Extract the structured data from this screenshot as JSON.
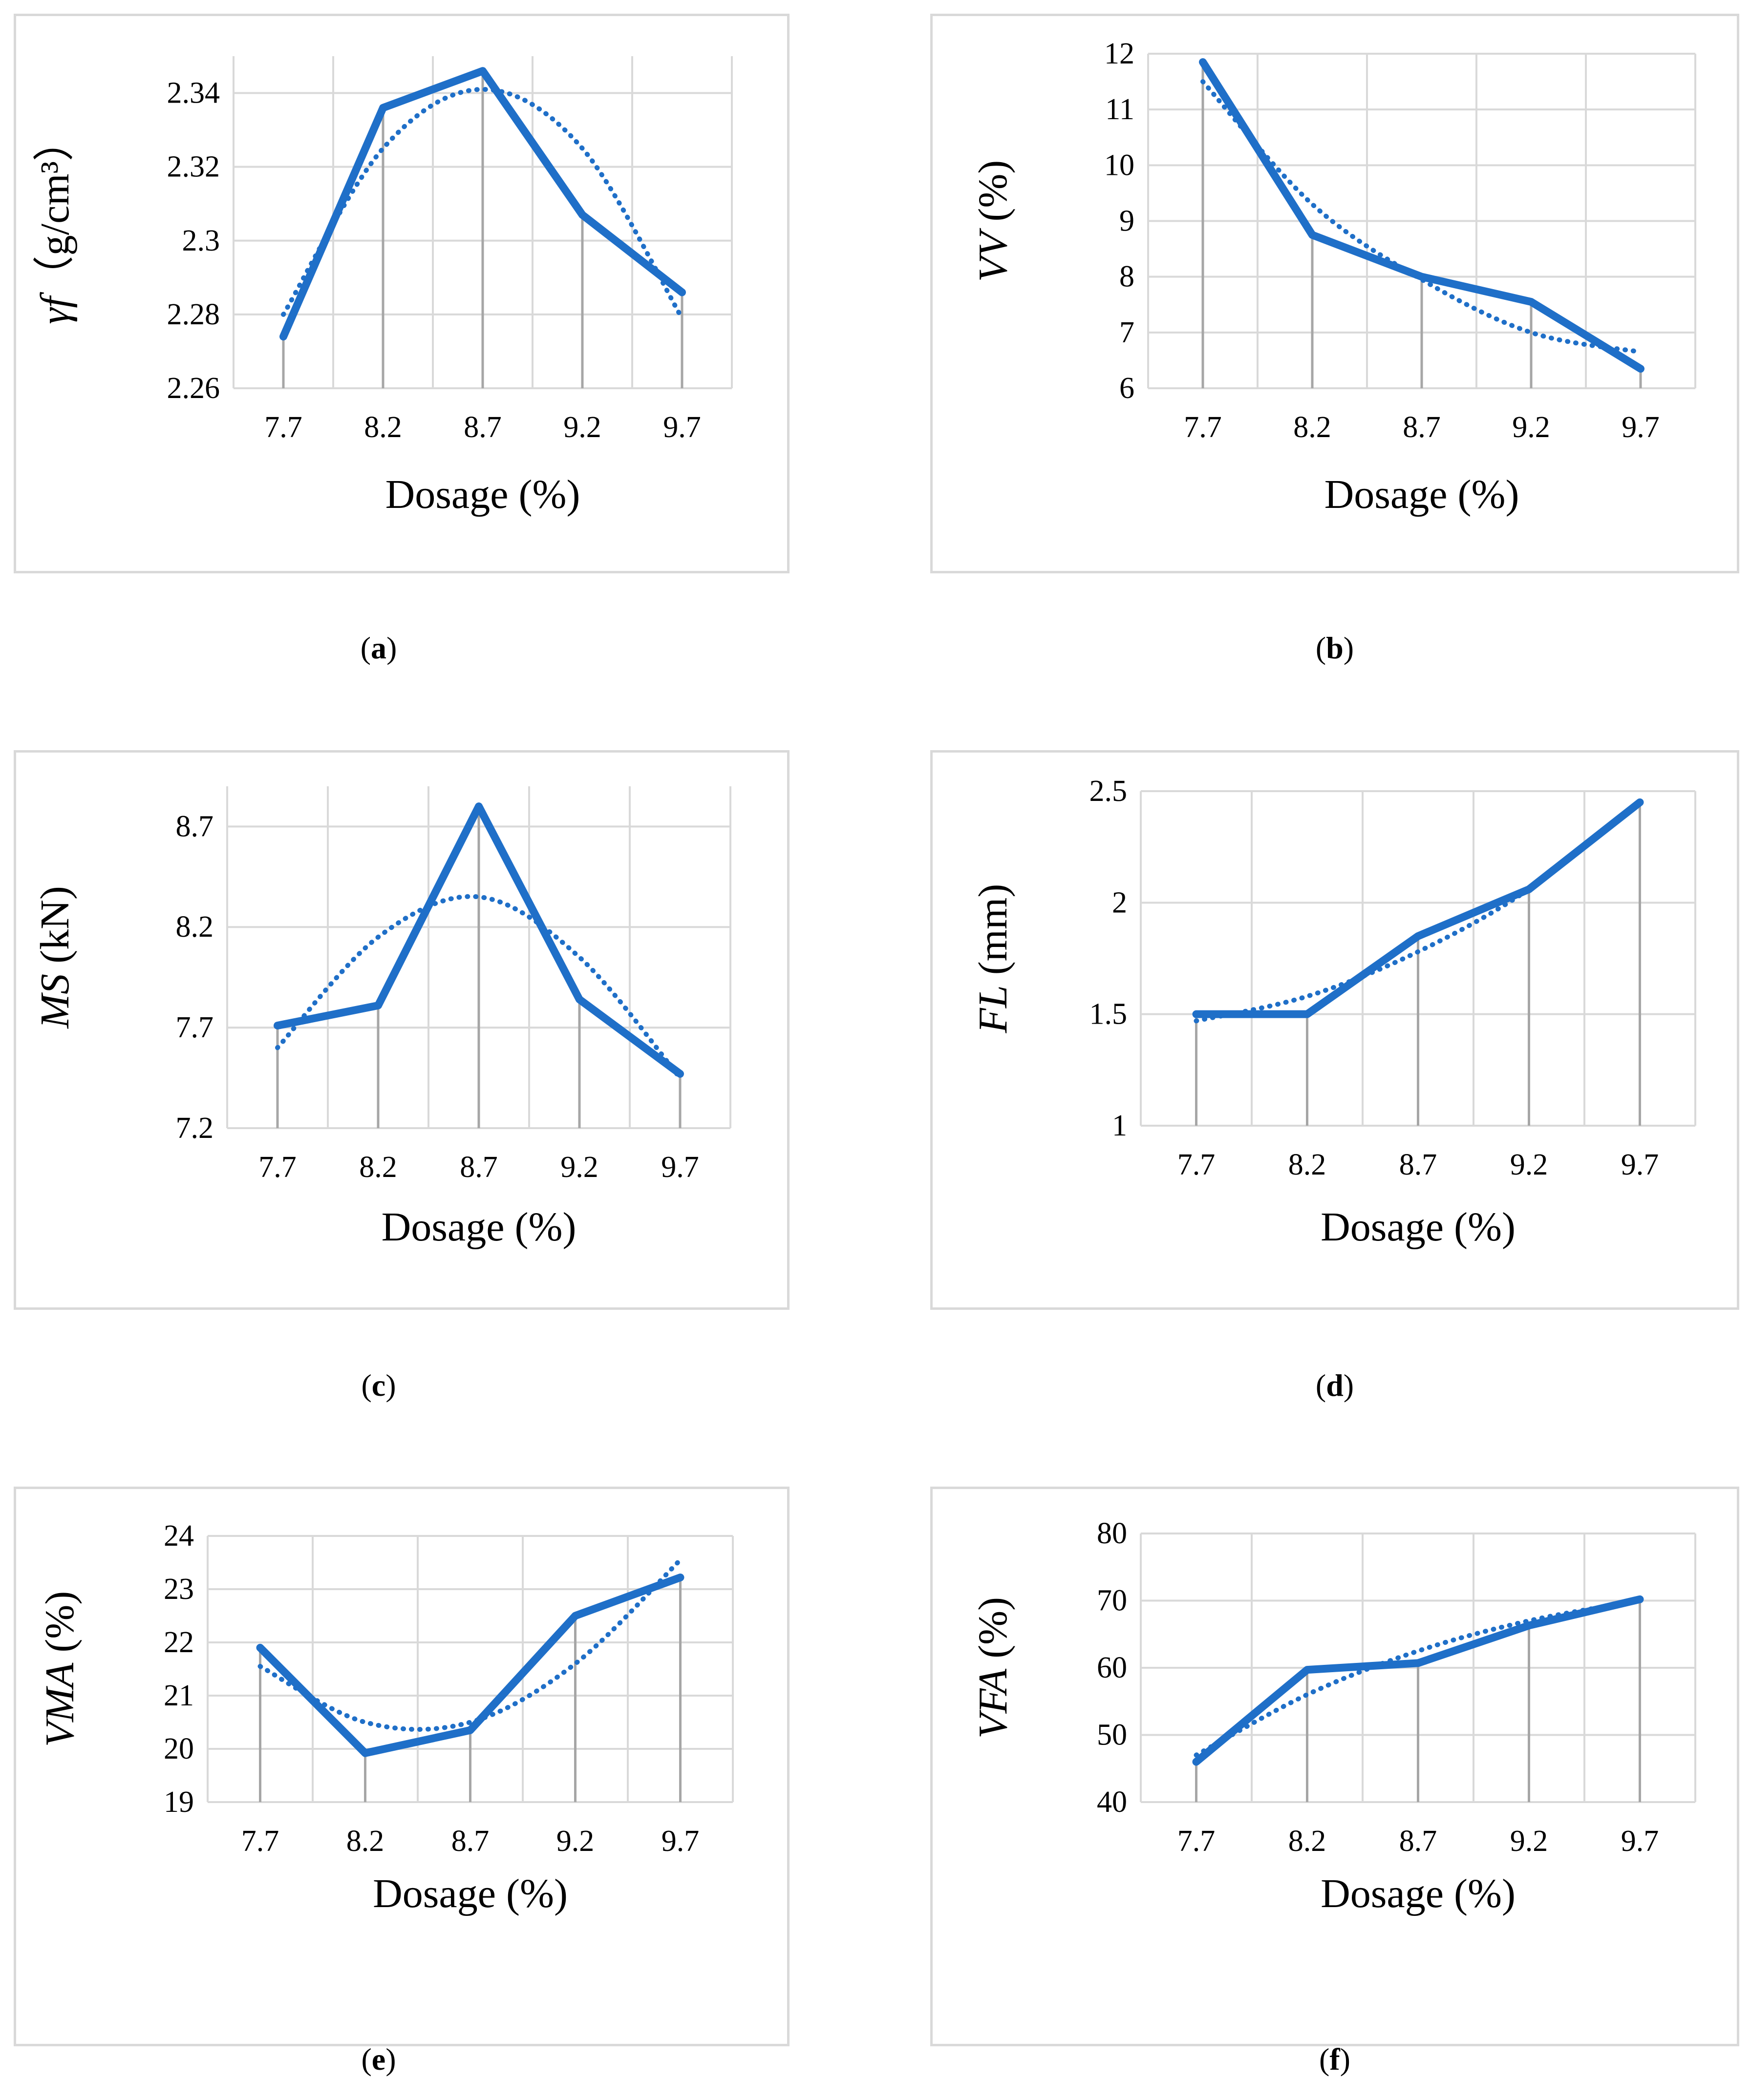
{
  "colors": {
    "series": "#1f6fc8",
    "grid": "#d9d9d9",
    "drop": "#a6a6a6"
  },
  "chart_data": [
    {
      "id": "a",
      "type": "line",
      "caption": {
        "open": "(",
        "letter": "a",
        "close": ")"
      },
      "ylabel": {
        "symbol": "γf",
        "unit": "（g/cm³）"
      },
      "xlabel": "Dosage (%)",
      "categories": [
        "7.7",
        "8.2",
        "8.7",
        "9.2",
        "9.7"
      ],
      "yticks": [
        "2.26",
        "2.28",
        "2.3",
        "2.32",
        "2.34"
      ],
      "ylim": [
        2.26,
        2.35
      ],
      "series": [
        {
          "name": "measured",
          "style": "solid",
          "values": [
            2.274,
            2.336,
            2.346,
            2.307,
            2.286
          ]
        },
        {
          "name": "trend",
          "style": "dotted",
          "values": [
            2.28,
            2.325,
            2.341,
            2.325,
            2.279
          ]
        }
      ]
    },
    {
      "id": "b",
      "type": "line",
      "caption": {
        "open": "(",
        "letter": "b",
        "close": ")"
      },
      "ylabel": {
        "symbol": "VV",
        "unit": " (%)"
      },
      "xlabel": "Dosage (%)",
      "categories": [
        "7.7",
        "8.2",
        "8.7",
        "9.2",
        "9.7"
      ],
      "yticks": [
        "6",
        "7",
        "8",
        "9",
        "10",
        "11",
        "12"
      ],
      "ylim": [
        6,
        12
      ],
      "series": [
        {
          "name": "measured",
          "style": "solid",
          "values": [
            11.85,
            8.75,
            8.0,
            7.55,
            6.35
          ]
        },
        {
          "name": "trend",
          "style": "dotted",
          "values": [
            11.5,
            9.3,
            7.95,
            7.0,
            6.65
          ]
        }
      ]
    },
    {
      "id": "c",
      "type": "line",
      "caption": {
        "open": "(",
        "letter": "c",
        "close": ")"
      },
      "ylabel": {
        "symbol": "MS",
        "unit": "  (kN)"
      },
      "xlabel": "Dosage (%)",
      "categories": [
        "7.7",
        "8.2",
        "8.7",
        "9.2",
        "9.7"
      ],
      "yticks": [
        "7.2",
        "7.7",
        "8.2",
        "8.7"
      ],
      "ylim": [
        7.2,
        8.9
      ],
      "series": [
        {
          "name": "measured",
          "style": "solid",
          "values": [
            7.71,
            7.81,
            8.8,
            7.84,
            7.47
          ]
        },
        {
          "name": "trend",
          "style": "dotted",
          "values": [
            7.6,
            8.15,
            8.35,
            8.05,
            7.45
          ]
        }
      ]
    },
    {
      "id": "d",
      "type": "line",
      "caption": {
        "open": "(",
        "letter": "d",
        "close": ")"
      },
      "ylabel": {
        "symbol": "FL",
        "unit": " (mm)"
      },
      "xlabel": "Dosage (%)",
      "categories": [
        "7.7",
        "8.2",
        "8.7",
        "9.2",
        "9.7"
      ],
      "yticks": [
        "1",
        "1.5",
        "2",
        "2.5"
      ],
      "ylim": [
        1,
        2.5
      ],
      "series": [
        {
          "name": "measured",
          "style": "solid",
          "values": [
            1.5,
            1.5,
            1.85,
            2.06,
            2.45
          ]
        },
        {
          "name": "trend",
          "style": "dotted",
          "values": [
            1.47,
            1.58,
            1.78,
            2.06,
            2.45
          ]
        }
      ]
    },
    {
      "id": "e",
      "type": "line",
      "caption": {
        "open": "(",
        "letter": "e",
        "close": ")"
      },
      "ylabel": {
        "symbol": "VMA",
        "unit": "  (%)"
      },
      "xlabel": "Dosage (%)",
      "categories": [
        "7.7",
        "8.2",
        "8.7",
        "9.2",
        "9.7"
      ],
      "yticks": [
        "19",
        "20",
        "21",
        "22",
        "23",
        "24"
      ],
      "ylim": [
        19,
        24
      ],
      "series": [
        {
          "name": "measured",
          "style": "solid",
          "values": [
            21.9,
            19.92,
            20.35,
            22.5,
            23.22
          ]
        },
        {
          "name": "trend",
          "style": "dotted",
          "values": [
            21.55,
            20.5,
            20.5,
            21.6,
            23.55
          ]
        }
      ]
    },
    {
      "id": "f",
      "type": "line",
      "caption": {
        "open": "(",
        "letter": "f",
        "close": ")"
      },
      "ylabel": {
        "symbol": "VFA",
        "unit": "  (%)"
      },
      "xlabel": "Dosage (%)",
      "categories": [
        "7.7",
        "8.2",
        "8.7",
        "9.2",
        "9.7"
      ],
      "yticks": [
        "40",
        "50",
        "60",
        "70",
        "80"
      ],
      "ylim": [
        40,
        80
      ],
      "series": [
        {
          "name": "measured",
          "style": "solid",
          "values": [
            46,
            59.7,
            60.7,
            66.3,
            70.2
          ]
        },
        {
          "name": "trend",
          "style": "dotted",
          "values": [
            47,
            56,
            62.5,
            67,
            70
          ]
        }
      ]
    }
  ]
}
